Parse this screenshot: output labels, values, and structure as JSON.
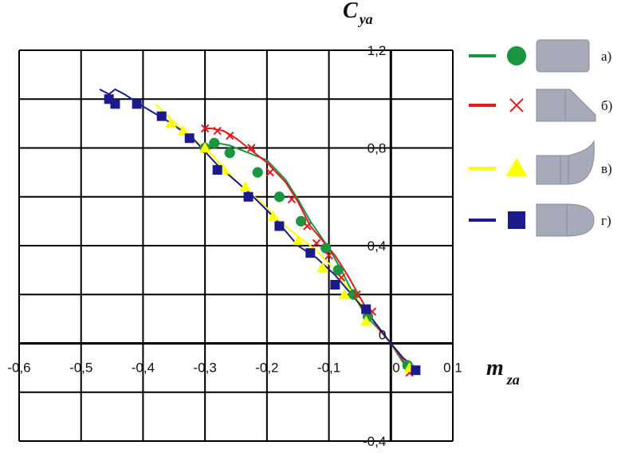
{
  "chart_data": {
    "type": "line",
    "x_axis": {
      "label": "m",
      "label_subscript": "za",
      "range": [
        -0.6,
        0.1
      ],
      "ticks": [
        -0.6,
        -0.5,
        -0.4,
        -0.3,
        -0.2,
        -0.1,
        0,
        0.1
      ],
      "tick_labels": [
        "-0,6",
        "-0,5",
        "-0,4",
        "-0,3",
        "-0,2",
        "-0,1",
        "0",
        "0,1"
      ]
    },
    "y_axis": {
      "label": "C",
      "label_subscript": "ya",
      "range": [
        -0.4,
        1.2
      ],
      "gridlines": [
        -0.4,
        -0.2,
        0,
        0.2,
        0.4,
        0.6,
        0.8,
        1.0,
        1.2
      ],
      "ticks": [
        -0.4,
        0,
        0.4,
        0.8,
        1.2
      ],
      "tick_labels": [
        "-0,4",
        "0",
        "0,4",
        "0,8",
        "1,2"
      ]
    },
    "grid": true,
    "legend_position": "right",
    "series": [
      {
        "name": "а)",
        "color": "#1a9641",
        "marker": "circle",
        "shape_icon": "cylinder-blunt-icon",
        "line": [
          [
            0.03,
            -0.1
          ],
          [
            0.02,
            -0.08
          ],
          [
            0,
            0
          ],
          [
            -0.02,
            0.06
          ],
          [
            -0.04,
            0.11
          ],
          [
            -0.06,
            0.2
          ],
          [
            -0.08,
            0.3
          ],
          [
            -0.1,
            0.39
          ],
          [
            -0.13,
            0.5
          ],
          [
            -0.15,
            0.59
          ],
          [
            -0.17,
            0.67
          ],
          [
            -0.2,
            0.75
          ],
          [
            -0.23,
            0.78
          ],
          [
            -0.26,
            0.81
          ],
          [
            -0.28,
            0.82
          ],
          [
            -0.3,
            0.8
          ]
        ],
        "markers": [
          [
            0.027,
            -0.09
          ],
          [
            -0.037,
            0.11
          ],
          [
            -0.06,
            0.2
          ],
          [
            -0.085,
            0.3
          ],
          [
            -0.105,
            0.39
          ],
          [
            -0.145,
            0.5
          ],
          [
            -0.18,
            0.6
          ],
          [
            -0.215,
            0.7
          ],
          [
            -0.26,
            0.78
          ],
          [
            -0.285,
            0.82
          ],
          [
            -0.3,
            0.8
          ]
        ]
      },
      {
        "name": "б)",
        "color": "#e31a1c",
        "marker": "x",
        "shape_icon": "cylinder-chamfer-icon",
        "line": [
          [
            0.035,
            -0.12
          ],
          [
            0.02,
            -0.07
          ],
          [
            0,
            0
          ],
          [
            -0.02,
            0.06
          ],
          [
            -0.035,
            0.12
          ],
          [
            -0.05,
            0.19
          ],
          [
            -0.07,
            0.28
          ],
          [
            -0.09,
            0.36
          ],
          [
            -0.11,
            0.42
          ],
          [
            -0.13,
            0.48
          ],
          [
            -0.15,
            0.58
          ],
          [
            -0.17,
            0.66
          ],
          [
            -0.2,
            0.74
          ],
          [
            -0.23,
            0.8
          ],
          [
            -0.25,
            0.84
          ],
          [
            -0.27,
            0.87
          ],
          [
            -0.29,
            0.88
          ],
          [
            -0.3,
            0.88
          ]
        ],
        "markers": [
          [
            0.03,
            -0.12
          ],
          [
            -0.03,
            0.13
          ],
          [
            -0.055,
            0.2
          ],
          [
            -0.08,
            0.27
          ],
          [
            -0.1,
            0.36
          ],
          [
            -0.12,
            0.41
          ],
          [
            -0.135,
            0.48
          ],
          [
            -0.16,
            0.59
          ],
          [
            -0.195,
            0.7
          ],
          [
            -0.225,
            0.8
          ],
          [
            -0.26,
            0.85
          ],
          [
            -0.28,
            0.87
          ],
          [
            -0.3,
            0.88
          ]
        ]
      },
      {
        "name": "в)",
        "color": "#ffff00",
        "marker": "triangle",
        "shape_icon": "cylinder-ogive-icon",
        "line": [
          [
            0.04,
            -0.12
          ],
          [
            0.02,
            -0.06
          ],
          [
            0,
            0
          ],
          [
            -0.03,
            0.1
          ],
          [
            -0.06,
            0.2
          ],
          [
            -0.09,
            0.3
          ],
          [
            -0.12,
            0.38
          ],
          [
            -0.15,
            0.44
          ],
          [
            -0.18,
            0.5
          ],
          [
            -0.21,
            0.58
          ],
          [
            -0.24,
            0.64
          ],
          [
            -0.27,
            0.72
          ],
          [
            -0.3,
            0.8
          ],
          [
            -0.33,
            0.86
          ],
          [
            -0.36,
            0.93
          ],
          [
            -0.38,
            0.98
          ]
        ],
        "markers": [
          [
            0.03,
            -0.1
          ],
          [
            -0.04,
            0.09
          ],
          [
            -0.075,
            0.2
          ],
          [
            -0.11,
            0.31
          ],
          [
            -0.15,
            0.42
          ],
          [
            -0.19,
            0.52
          ],
          [
            -0.235,
            0.64
          ],
          [
            -0.27,
            0.71
          ],
          [
            -0.3,
            0.8
          ],
          [
            -0.335,
            0.87
          ],
          [
            -0.355,
            0.9
          ]
        ]
      },
      {
        "name": "г)",
        "color": "#1a1a8c",
        "marker": "square",
        "shape_icon": "cylinder-hemisphere-icon",
        "line": [
          [
            0.045,
            -0.11
          ],
          [
            0.02,
            -0.06
          ],
          [
            0,
            0
          ],
          [
            -0.03,
            0.1
          ],
          [
            -0.05,
            0.16
          ],
          [
            -0.09,
            0.28
          ],
          [
            -0.12,
            0.35
          ],
          [
            -0.15,
            0.4
          ],
          [
            -0.19,
            0.52
          ],
          [
            -0.23,
            0.62
          ],
          [
            -0.28,
            0.73
          ],
          [
            -0.32,
            0.84
          ],
          [
            -0.36,
            0.91
          ],
          [
            -0.4,
            0.97
          ],
          [
            -0.43,
            1.02
          ],
          [
            -0.445,
            1.04
          ],
          [
            -0.455,
            1.02
          ],
          [
            -0.47,
            1.04
          ]
        ],
        "markers": [
          [
            0.04,
            -0.11
          ],
          [
            -0.04,
            0.14
          ],
          [
            -0.09,
            0.24
          ],
          [
            -0.13,
            0.37
          ],
          [
            -0.18,
            0.48
          ],
          [
            -0.23,
            0.6
          ],
          [
            -0.28,
            0.71
          ],
          [
            -0.325,
            0.84
          ],
          [
            -0.37,
            0.93
          ],
          [
            -0.41,
            0.98
          ],
          [
            -0.445,
            0.98
          ],
          [
            -0.455,
            1.0
          ]
        ]
      }
    ]
  }
}
